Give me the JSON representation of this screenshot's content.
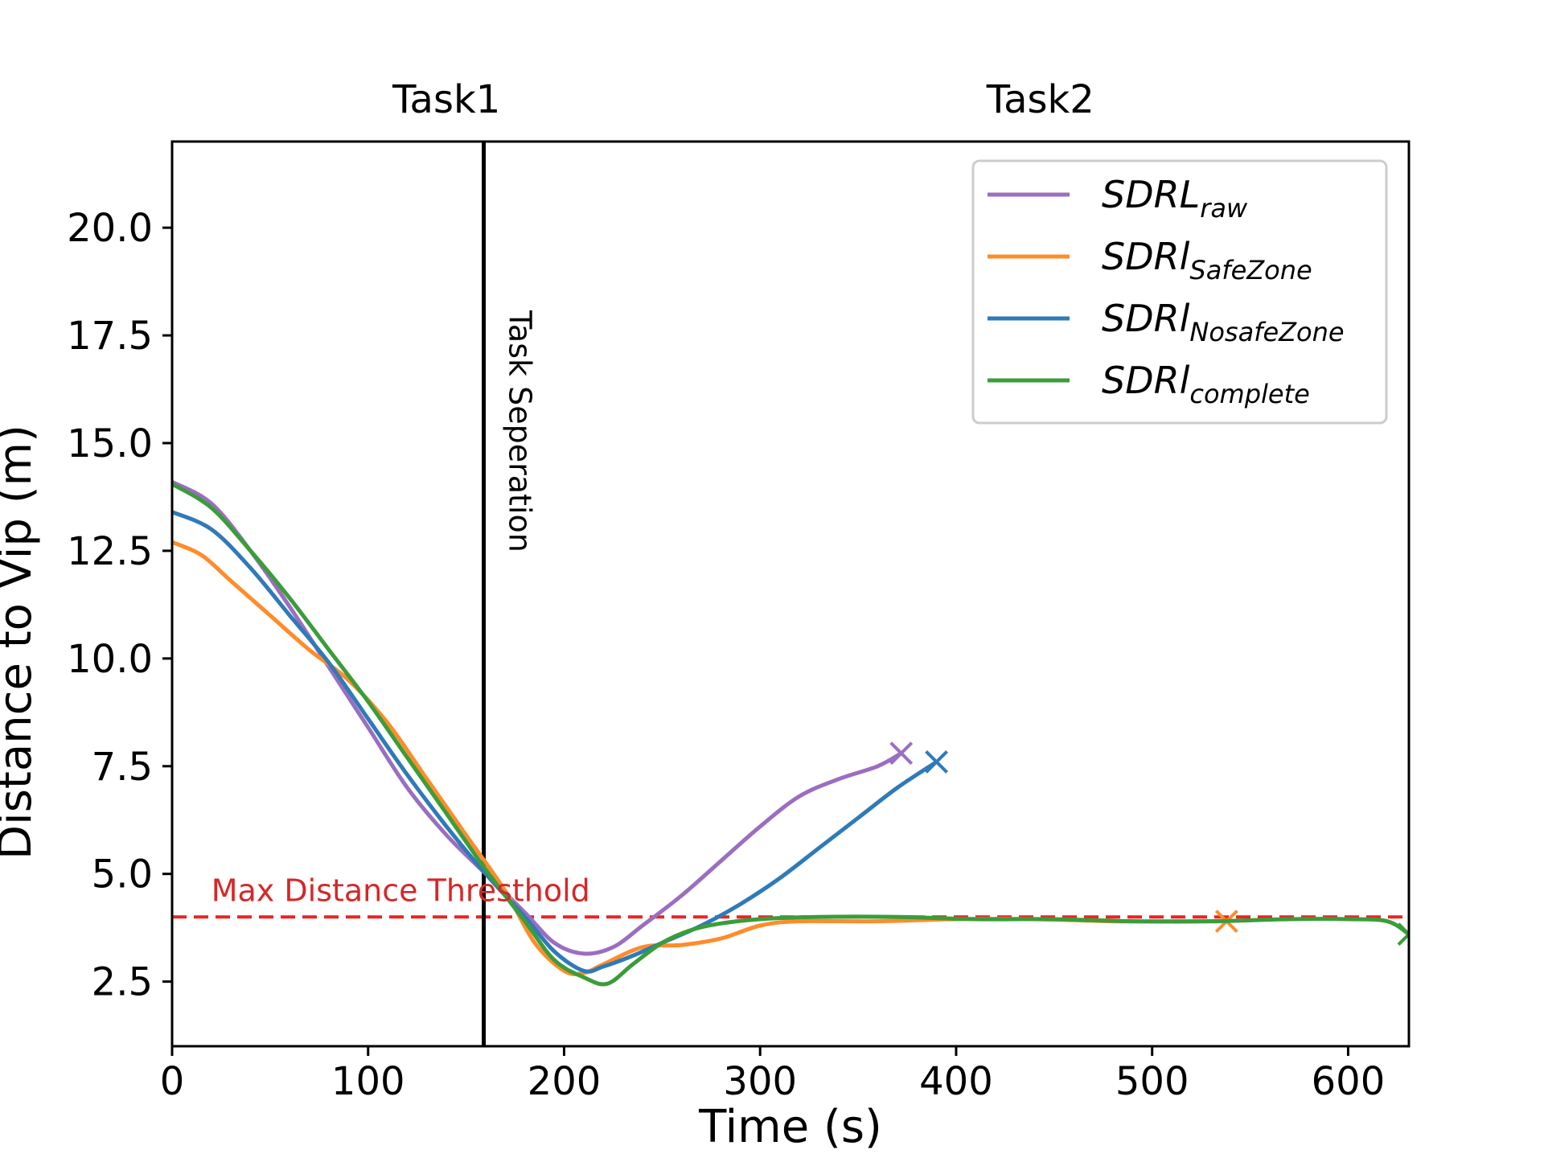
{
  "chart_data": {
    "type": "line",
    "xlabel": "Time (s)",
    "ylabel": "Distance to Vip (m)",
    "xlim": [
      0,
      631
    ],
    "ylim": [
      1.0,
      22.0
    ],
    "xticks": [
      0,
      100,
      200,
      300,
      400,
      500,
      600
    ],
    "xtick_labels": [
      "0",
      "100",
      "200",
      "300",
      "400",
      "500",
      "600"
    ],
    "yticks": [
      2.5,
      5.0,
      7.5,
      10.0,
      12.5,
      15.0,
      17.5,
      20.0
    ],
    "ytick_labels": [
      "2.5",
      "5.0",
      "7.5",
      "10.0",
      "12.5",
      "15.0",
      "17.5",
      "20.0"
    ],
    "grid": false,
    "legend_position": "top-right",
    "top_labels": [
      {
        "text": "Task1",
        "x": 140
      },
      {
        "text": "Task2",
        "x": 443
      }
    ],
    "vertical_line": {
      "x": 159,
      "label": "Task Seperation",
      "color": "#000000"
    },
    "threshold": {
      "y": 4.0,
      "label": "Max Distance Thresthold",
      "color": "#ee2222"
    },
    "series": [
      {
        "name": "SDRL",
        "subscript": "raw",
        "color": "#9b6ec0",
        "end_marker": "x",
        "x": [
          0,
          20,
          40,
          60,
          80,
          100,
          120,
          140,
          160,
          180,
          195,
          210,
          225,
          240,
          260,
          280,
          300,
          320,
          340,
          360,
          372
        ],
        "y": [
          14.1,
          13.6,
          12.5,
          11.2,
          9.8,
          8.4,
          7.0,
          5.9,
          5.0,
          4.1,
          3.4,
          3.15,
          3.3,
          3.8,
          4.5,
          5.3,
          6.1,
          6.8,
          7.2,
          7.5,
          7.8
        ]
      },
      {
        "name": "SDRl",
        "subscript": "SafeZone",
        "color": "#ff8c2a",
        "end_marker": "x",
        "x": [
          0,
          15,
          30,
          50,
          70,
          90,
          110,
          130,
          150,
          170,
          185,
          200,
          210,
          220,
          240,
          260,
          280,
          300,
          320,
          360,
          400,
          440,
          480,
          510,
          538
        ],
        "y": [
          12.7,
          12.4,
          11.8,
          11.0,
          10.2,
          9.5,
          8.5,
          7.2,
          5.9,
          4.6,
          3.4,
          2.75,
          2.7,
          2.9,
          3.3,
          3.35,
          3.5,
          3.8,
          3.9,
          3.9,
          3.95,
          3.95,
          3.9,
          3.9,
          3.9
        ]
      },
      {
        "name": "SDRl",
        "subscript": "NosafeZone",
        "color": "#2f7ab8",
        "end_marker": "x",
        "x": [
          0,
          20,
          40,
          60,
          80,
          100,
          120,
          140,
          160,
          180,
          195,
          210,
          220,
          235,
          250,
          270,
          290,
          310,
          330,
          350,
          370,
          390
        ],
        "y": [
          13.4,
          13.0,
          12.1,
          11.0,
          9.9,
          8.6,
          7.3,
          6.1,
          5.0,
          4.0,
          3.2,
          2.75,
          2.85,
          3.1,
          3.4,
          3.8,
          4.3,
          4.9,
          5.6,
          6.3,
          7.0,
          7.6
        ]
      },
      {
        "name": "SDRl",
        "subscript": "complete",
        "color": "#3a9d3a",
        "end_marker": "x",
        "x": [
          0,
          20,
          40,
          60,
          80,
          100,
          120,
          140,
          160,
          180,
          195,
          210,
          222,
          235,
          250,
          265,
          280,
          300,
          330,
          370,
          410,
          450,
          490,
          530,
          570,
          600,
          620,
          631
        ],
        "y": [
          14.05,
          13.5,
          12.5,
          11.4,
          10.2,
          9.0,
          7.7,
          6.4,
          5.1,
          3.9,
          3.0,
          2.6,
          2.45,
          2.9,
          3.4,
          3.7,
          3.85,
          3.95,
          4.0,
          4.0,
          3.95,
          3.95,
          3.9,
          3.9,
          3.95,
          3.95,
          3.9,
          3.6
        ]
      }
    ]
  }
}
